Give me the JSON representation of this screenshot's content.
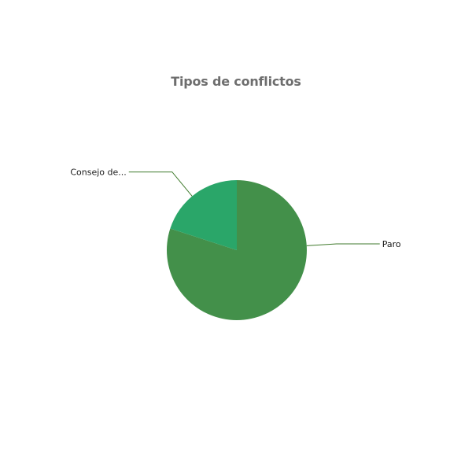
{
  "chart_data": {
    "type": "pie",
    "title": "Tipos de conflictos",
    "slices": [
      {
        "label": "Paro",
        "display_label": "Paro",
        "value": 80,
        "color": "#43904a"
      },
      {
        "label": "Consejo de...",
        "display_label": "Consejo de...",
        "value": 20,
        "color": "#2aa669"
      }
    ],
    "leader_line_color": "#3f7a2c",
    "legend": "none"
  }
}
